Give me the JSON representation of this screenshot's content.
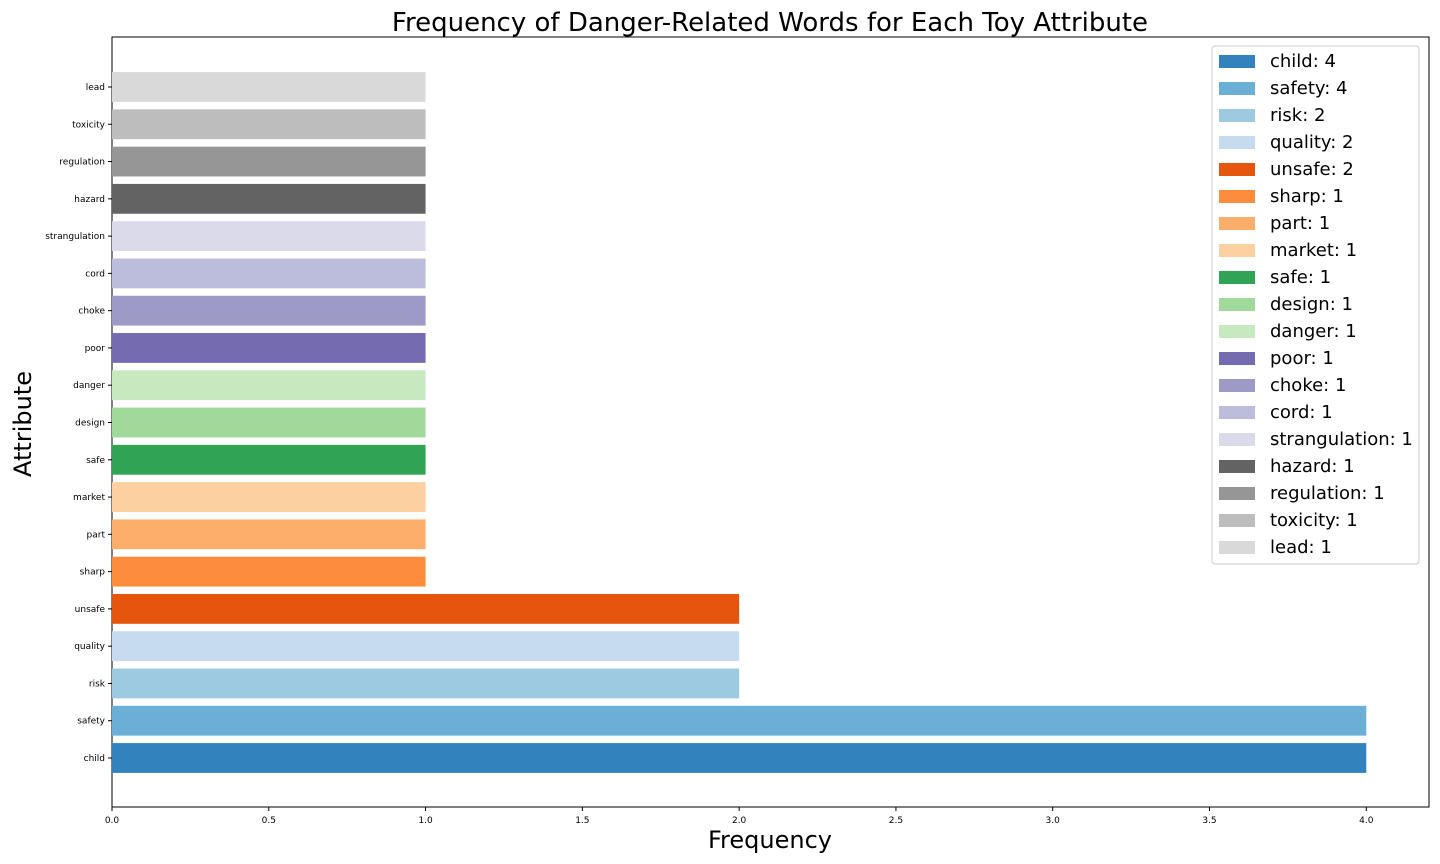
{
  "chart_data": {
    "type": "bar",
    "orientation": "horizontal",
    "title": "Frequency of Danger-Related Words for Each Toy Attribute",
    "xlabel": "Frequency",
    "ylabel": "Attribute",
    "xlim": [
      0,
      4.2
    ],
    "xticks": [
      "0.0",
      "0.5",
      "1.0",
      "1.5",
      "2.0",
      "2.5",
      "3.0",
      "3.5",
      "4.0"
    ],
    "grid": false,
    "legend_position": "top-right",
    "categories": [
      "child",
      "safety",
      "risk",
      "quality",
      "unsafe",
      "sharp",
      "part",
      "market",
      "safe",
      "design",
      "danger",
      "poor",
      "choke",
      "cord",
      "strangulation",
      "hazard",
      "regulation",
      "toxicity",
      "lead"
    ],
    "values": [
      4,
      4,
      2,
      2,
      2,
      1,
      1,
      1,
      1,
      1,
      1,
      1,
      1,
      1,
      1,
      1,
      1,
      1,
      1
    ],
    "colors": [
      "#3182bd",
      "#6baed6",
      "#9ecae1",
      "#c6dbef",
      "#e6550d",
      "#fd8d3c",
      "#fdae6b",
      "#fdd0a2",
      "#31a354",
      "#a1d99b",
      "#c7e9c0",
      "#756bb1",
      "#9e9ac8",
      "#bcbddc",
      "#dadaeb",
      "#636363",
      "#969696",
      "#bdbdbd",
      "#d9d9d9"
    ],
    "legend": [
      "child: 4",
      "safety: 4",
      "risk: 2",
      "quality: 2",
      "unsafe: 2",
      "sharp: 1",
      "part: 1",
      "market: 1",
      "safe: 1",
      "design: 1",
      "danger: 1",
      "poor: 1",
      "choke: 1",
      "cord: 1",
      "strangulation: 1",
      "hazard: 1",
      "regulation: 1",
      "toxicity: 1",
      "lead: 1"
    ]
  }
}
